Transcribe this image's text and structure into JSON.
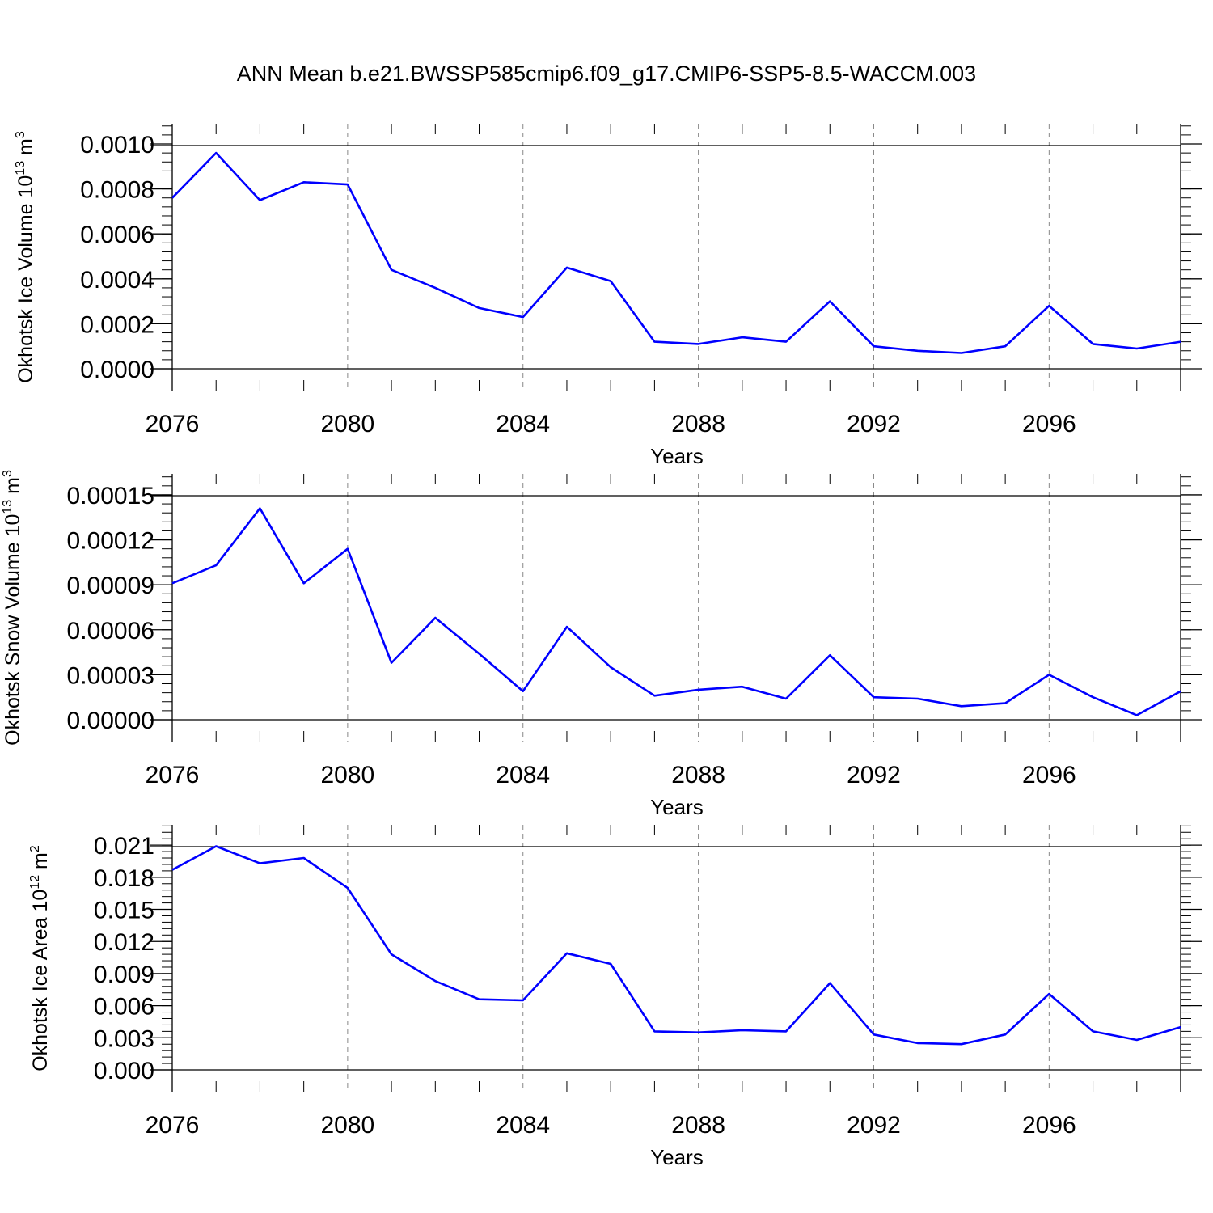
{
  "title": "ANN Mean b.e21.BWSSP585cmip6.f09_g17.CMIP6-SSP5-8.5-WACCM.003",
  "style": {
    "line_color": "#0000ff",
    "axis_color": "#000000",
    "grid_color": "#888888"
  },
  "chart_data": [
    {
      "type": "line",
      "ylabel": {
        "text": "Okhotsk Ice Volume 10",
        "sup": "13",
        "unit": " m",
        "unit_sup": "3"
      },
      "xlabel": "Years",
      "xlim": [
        2076,
        2099
      ],
      "ylim": [
        0,
        0.00109
      ],
      "xticks": [
        2076,
        2080,
        2084,
        2088,
        2092,
        2096
      ],
      "yticks": [
        0.0,
        0.0002,
        0.0004,
        0.0006,
        0.0008,
        0.001
      ],
      "ytick_labels": [
        "0.0000",
        "0.0002",
        "0.0004",
        "0.0006",
        "0.0008",
        "0.0010"
      ],
      "grid": "vertical dashed at major x ticks",
      "series": [
        {
          "x": [
            2076,
            2077,
            2078,
            2079,
            2080,
            2081,
            2082,
            2083,
            2084,
            2085,
            2086,
            2087,
            2088,
            2089,
            2090,
            2091,
            2092,
            2093,
            2094,
            2095,
            2096,
            2097,
            2098,
            2099
          ],
          "values": [
            0.00076,
            0.00096,
            0.00075,
            0.00083,
            0.00082,
            0.00044,
            0.00036,
            0.00027,
            0.00023,
            0.00045,
            0.00039,
            0.00012,
            0.00011,
            0.00014,
            0.00012,
            0.0003,
            0.0001,
            8e-05,
            7e-05,
            0.0001,
            0.00028,
            0.00011,
            9e-05,
            0.00012
          ]
        }
      ]
    },
    {
      "type": "line",
      "ylabel": {
        "text": "Okhotsk Snow Volume 10",
        "sup": "13",
        "unit": " m",
        "unit_sup": "3"
      },
      "xlabel": "Years",
      "xlim": [
        2076,
        2099
      ],
      "ylim": [
        0,
        0.000164
      ],
      "xticks": [
        2076,
        2080,
        2084,
        2088,
        2092,
        2096
      ],
      "yticks": [
        0.0,
        3e-05,
        6e-05,
        9e-05,
        0.00012,
        0.00015
      ],
      "ytick_labels": [
        "0.00000",
        "0.00003",
        "0.00006",
        "0.00009",
        "0.00012",
        "0.00015"
      ],
      "grid": "vertical dashed at major x ticks",
      "series": [
        {
          "x": [
            2076,
            2077,
            2078,
            2079,
            2080,
            2081,
            2082,
            2083,
            2084,
            2085,
            2086,
            2087,
            2088,
            2089,
            2090,
            2091,
            2092,
            2093,
            2094,
            2095,
            2096,
            2097,
            2098,
            2099
          ],
          "values": [
            9.1e-05,
            0.000103,
            0.000141,
            9.1e-05,
            0.000114,
            3.8e-05,
            6.8e-05,
            4.4e-05,
            1.9e-05,
            6.2e-05,
            3.5e-05,
            1.6e-05,
            2e-05,
            2.2e-05,
            1.4e-05,
            4.3e-05,
            1.5e-05,
            1.4e-05,
            9e-06,
            1.1e-05,
            3e-05,
            1.5e-05,
            3e-06,
            1.9e-05
          ]
        }
      ]
    },
    {
      "type": "line",
      "ylabel": {
        "text": "Okhotsk Ice Area 10",
        "sup": "12",
        "unit": " m",
        "unit_sup": "2"
      },
      "xlabel": "Years",
      "xlim": [
        2076,
        2099
      ],
      "ylim": [
        0,
        0.0229
      ],
      "xticks": [
        2076,
        2080,
        2084,
        2088,
        2092,
        2096
      ],
      "yticks": [
        0.0,
        0.003,
        0.006,
        0.009,
        0.012,
        0.015,
        0.018,
        0.021
      ],
      "ytick_labels": [
        "0.000",
        "0.003",
        "0.006",
        "0.009",
        "0.012",
        "0.015",
        "0.018",
        "0.021"
      ],
      "grid": "vertical dashed at major x ticks",
      "series": [
        {
          "x": [
            2076,
            2077,
            2078,
            2079,
            2080,
            2081,
            2082,
            2083,
            2084,
            2085,
            2086,
            2087,
            2088,
            2089,
            2090,
            2091,
            2092,
            2093,
            2094,
            2095,
            2096,
            2097,
            2098,
            2099
          ],
          "values": [
            0.0187,
            0.0209,
            0.0193,
            0.0198,
            0.017,
            0.0108,
            0.0083,
            0.0066,
            0.0065,
            0.0109,
            0.0099,
            0.0036,
            0.0035,
            0.0037,
            0.0036,
            0.0081,
            0.0033,
            0.0025,
            0.0024,
            0.0033,
            0.0071,
            0.0036,
            0.0028,
            0.004
          ]
        }
      ]
    }
  ]
}
